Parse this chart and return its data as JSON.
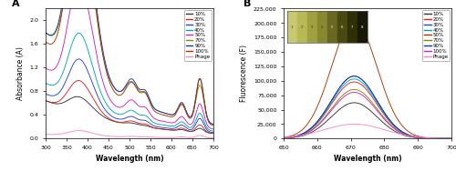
{
  "panel_A": {
    "title": "A",
    "xlabel": "Wavelength (nm)",
    "ylabel": "Absorbance (A)",
    "xlim": [
      300,
      700
    ],
    "ylim": [
      0.0,
      2.2
    ],
    "yticks": [
      0.0,
      0.4,
      0.8,
      1.2,
      1.6,
      2.0
    ],
    "xticks": [
      300,
      350,
      400,
      450,
      500,
      550,
      600,
      650,
      700
    ],
    "series": {
      "10%": {
        "color": "#333333",
        "s_peak": 0.19,
        "b_peak": 2.08,
        "q670": 0.07,
        "q625": 0.025,
        "scatter": 0.64
      },
      "20%": {
        "color": "#dd2222",
        "s_peak": 0.38,
        "b_peak": 2.08,
        "q670": 0.13,
        "q625": 0.05,
        "scatter": 0.64
      },
      "30%": {
        "color": "#2244dd",
        "s_peak": 0.58,
        "b_peak": 2.08,
        "q670": 0.22,
        "q625": 0.08,
        "scatter": 0.75
      },
      "40%": {
        "color": "#00aaaa",
        "s_peak": 0.8,
        "b_peak": 2.08,
        "q670": 0.28,
        "q625": 0.1,
        "scatter": 0.93
      },
      "50%": {
        "color": "#cc22cc",
        "s_peak": 1.28,
        "b_peak": 2.08,
        "q670": 0.4,
        "q625": 0.14,
        "scatter": 1.18
      },
      "70%": {
        "color": "#888800",
        "s_peak": 1.82,
        "b_peak": 2.08,
        "q670": 0.62,
        "q625": 0.22,
        "scatter": 1.78
      },
      "90%": {
        "color": "#1133bb",
        "s_peak": 2.06,
        "b_peak": 2.08,
        "q670": 0.73,
        "q625": 0.26,
        "scatter": 1.78
      },
      "100%": {
        "color": "#aa3300",
        "s_peak": 2.06,
        "b_peak": 2.08,
        "q670": 0.76,
        "q625": 0.27,
        "scatter": 1.62
      },
      "Phage": {
        "color": "#ff88bb",
        "s_peak": 0.06,
        "b_peak": 0.06,
        "q670": 0.04,
        "q625": 0.015,
        "scatter": 0.07
      }
    },
    "legend_order": [
      "10%",
      "20%",
      "30%",
      "40%",
      "50%",
      "70%",
      "90%",
      "100%",
      "Phage"
    ]
  },
  "panel_B": {
    "title": "B",
    "xlabel": "Wavelength (nm)",
    "ylabel": "Fluorescence (F)",
    "xlim": [
      650,
      700
    ],
    "ylim": [
      0,
      225000
    ],
    "yticks": [
      0,
      25000,
      50000,
      75000,
      100000,
      125000,
      150000,
      175000,
      200000,
      225000
    ],
    "peak_nm": 671,
    "series": {
      "10%": {
        "color": "#333333",
        "peak": 62000,
        "sigma": 6.8
      },
      "20%": {
        "color": "#dd2222",
        "peak": 98000,
        "sigma": 6.8
      },
      "30%": {
        "color": "#2244dd",
        "peak": 108000,
        "sigma": 6.8
      },
      "40%": {
        "color": "#00aaaa",
        "peak": 103000,
        "sigma": 6.8
      },
      "50%": {
        "color": "#aa3300",
        "peak": 204000,
        "sigma": 6.8
      },
      "70%": {
        "color": "#888800",
        "peak": 85000,
        "sigma": 6.8
      },
      "90%": {
        "color": "#1133bb",
        "peak": 108000,
        "sigma": 6.8
      },
      "100%": {
        "color": "#cc22cc",
        "peak": 80000,
        "sigma": 6.8
      },
      "Phage": {
        "color": "#ff88bb",
        "peak": 25000,
        "sigma": 9.0
      }
    },
    "legend_order": [
      "10%",
      "20%",
      "30%",
      "40%",
      "50%",
      "70%",
      "90%",
      "100%",
      "Phage"
    ],
    "inset_colors": [
      "#c8c870",
      "#b8b855",
      "#a0a040",
      "#888830",
      "#686820",
      "#4a4a10",
      "#303008",
      "#181808"
    ]
  }
}
